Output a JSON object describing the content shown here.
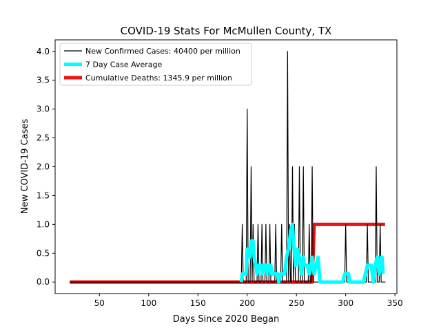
{
  "chart_data": {
    "type": "line",
    "title": "COVID-19 Stats For McMullen County, TX",
    "xlabel": "Days Since 2020 Began",
    "ylabel": "New COVID-19 Cases",
    "xlim": [
      5,
      352
    ],
    "ylim": [
      -0.2,
      4.2
    ],
    "xticks": [
      50,
      100,
      150,
      200,
      250,
      300,
      350
    ],
    "yticks": [
      0.0,
      0.5,
      1.0,
      1.5,
      2.0,
      2.5,
      3.0,
      3.5,
      4.0
    ],
    "ytick_labels": [
      "0.0",
      "0.5",
      "1.0",
      "1.5",
      "2.0",
      "2.5",
      "3.0",
      "3.5",
      "4.0"
    ],
    "grid": false,
    "legend_position": "top-left",
    "series": [
      {
        "name": "New Confirmed Cases: 40400 per million",
        "color": "#000000",
        "style": "thin",
        "points": [
          [
            20,
            0
          ],
          [
            194,
            0
          ],
          [
            195,
            1
          ],
          [
            196,
            0
          ],
          [
            199,
            0
          ],
          [
            200,
            3
          ],
          [
            201,
            0
          ],
          [
            203,
            0
          ],
          [
            204,
            2
          ],
          [
            205,
            0
          ],
          [
            206,
            1
          ],
          [
            207,
            0
          ],
          [
            210,
            0
          ],
          [
            211,
            1
          ],
          [
            212,
            0
          ],
          [
            214,
            0
          ],
          [
            215,
            1
          ],
          [
            216,
            0
          ],
          [
            218,
            0
          ],
          [
            219,
            1
          ],
          [
            220,
            0
          ],
          [
            222,
            0
          ],
          [
            223,
            1
          ],
          [
            224,
            0
          ],
          [
            228,
            0
          ],
          [
            229,
            1
          ],
          [
            230,
            0
          ],
          [
            234,
            0
          ],
          [
            235,
            1
          ],
          [
            236,
            0
          ],
          [
            240,
            0
          ],
          [
            241,
            4
          ],
          [
            242,
            0
          ],
          [
            243,
            1
          ],
          [
            244,
            0
          ],
          [
            245,
            0
          ],
          [
            246,
            2
          ],
          [
            247,
            0
          ],
          [
            248,
            1
          ],
          [
            249,
            0
          ],
          [
            252,
            0
          ],
          [
            253,
            2
          ],
          [
            254,
            0
          ],
          [
            256,
            0
          ],
          [
            257,
            2
          ],
          [
            258,
            0
          ],
          [
            262,
            0
          ],
          [
            263,
            1
          ],
          [
            264,
            0
          ],
          [
            265,
            0
          ],
          [
            266,
            2
          ],
          [
            267,
            0
          ],
          [
            299,
            0
          ],
          [
            300,
            1
          ],
          [
            301,
            0
          ],
          [
            321,
            0
          ],
          [
            322,
            1
          ],
          [
            323,
            0
          ],
          [
            330,
            0
          ],
          [
            331,
            2
          ],
          [
            332,
            0
          ],
          [
            334,
            0
          ],
          [
            335,
            1
          ],
          [
            336,
            0
          ],
          [
            340,
            0
          ]
        ]
      },
      {
        "name": "7 Day Case Average",
        "color": "#00ffff",
        "style": "thick",
        "points": [
          [
            194,
            0
          ],
          [
            195,
            0.14
          ],
          [
            197,
            0.14
          ],
          [
            199,
            0.14
          ],
          [
            200,
            0.57
          ],
          [
            202,
            0.57
          ],
          [
            203,
            0.43
          ],
          [
            204,
            0.71
          ],
          [
            206,
            0.71
          ],
          [
            207,
            0.43
          ],
          [
            209,
            0.29
          ],
          [
            210,
            0.14
          ],
          [
            212,
            0.29
          ],
          [
            214,
            0.29
          ],
          [
            215,
            0.14
          ],
          [
            217,
            0.29
          ],
          [
            219,
            0.29
          ],
          [
            220,
            0.14
          ],
          [
            222,
            0.29
          ],
          [
            224,
            0.29
          ],
          [
            225,
            0.14
          ],
          [
            228,
            0.14
          ],
          [
            229,
            0.14
          ],
          [
            231,
            0.14
          ],
          [
            232,
            0.0
          ],
          [
            234,
            0.14
          ],
          [
            236,
            0.14
          ],
          [
            238,
            0.14
          ],
          [
            240,
            0.43
          ],
          [
            242,
            0.57
          ],
          [
            244,
            0.86
          ],
          [
            246,
            1.0
          ],
          [
            247,
            0.71
          ],
          [
            249,
            0.29
          ],
          [
            251,
            0.57
          ],
          [
            253,
            0.43
          ],
          [
            255,
            0.14
          ],
          [
            257,
            0.43
          ],
          [
            258,
            0.29
          ],
          [
            261,
            0.29
          ],
          [
            263,
            0.14
          ],
          [
            265,
            0.29
          ],
          [
            266,
            0.43
          ],
          [
            268,
            0.14
          ],
          [
            270,
            0.29
          ],
          [
            272,
            0.43
          ],
          [
            274,
            0.0
          ],
          [
            297,
            0.0
          ],
          [
            299,
            0.14
          ],
          [
            303,
            0.14
          ],
          [
            304,
            0.0
          ],
          [
            313,
            0.0
          ],
          [
            318,
            0.0
          ],
          [
            320,
            0.14
          ],
          [
            322,
            0.29
          ],
          [
            324,
            0.29
          ],
          [
            326,
            0.29
          ],
          [
            328,
            0.0
          ],
          [
            330,
            0.29
          ],
          [
            332,
            0.43
          ],
          [
            334,
            0.14
          ],
          [
            336,
            0.43
          ],
          [
            337,
            0.43
          ],
          [
            338,
            0.14
          ]
        ]
      },
      {
        "name": "Cumulative Deaths: 1345.9 per million",
        "color": "#ee1111",
        "style": "thick",
        "points": [
          [
            20,
            0
          ],
          [
            266,
            0
          ],
          [
            268,
            1
          ],
          [
            340,
            1
          ]
        ]
      }
    ]
  }
}
